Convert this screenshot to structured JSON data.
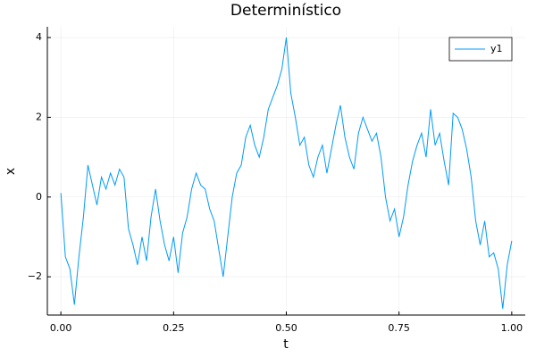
{
  "chart_data": {
    "type": "line",
    "title": "Determinístico",
    "x_label": "t",
    "y_label": "x",
    "x": [
      0.0,
      0.01,
      0.02,
      0.03,
      0.04,
      0.05,
      0.06,
      0.07,
      0.08,
      0.09,
      0.1,
      0.11,
      0.12,
      0.13,
      0.14,
      0.15,
      0.16,
      0.17,
      0.18,
      0.19,
      0.2,
      0.21,
      0.22,
      0.23,
      0.24,
      0.25,
      0.26,
      0.27,
      0.28,
      0.29,
      0.3,
      0.31,
      0.32,
      0.33,
      0.34,
      0.35,
      0.36,
      0.37,
      0.38,
      0.39,
      0.4,
      0.41,
      0.42,
      0.43,
      0.44,
      0.45,
      0.46,
      0.47,
      0.48,
      0.49,
      0.5,
      0.51,
      0.52,
      0.53,
      0.54,
      0.55,
      0.56,
      0.57,
      0.58,
      0.59,
      0.6,
      0.61,
      0.62,
      0.63,
      0.64,
      0.65,
      0.66,
      0.67,
      0.68,
      0.69,
      0.7,
      0.71,
      0.72,
      0.73,
      0.74,
      0.75,
      0.76,
      0.77,
      0.78,
      0.79,
      0.8,
      0.81,
      0.82,
      0.83,
      0.84,
      0.85,
      0.86,
      0.87,
      0.88,
      0.89,
      0.9,
      0.91,
      0.92,
      0.93,
      0.94,
      0.95,
      0.96,
      0.97,
      0.98,
      0.99,
      1.0
    ],
    "series": [
      {
        "name": "y1",
        "color": "#009af9",
        "values": [
          0.1,
          -1.5,
          -1.8,
          -2.7,
          -1.5,
          -0.5,
          0.8,
          0.3,
          -0.2,
          0.5,
          0.2,
          0.6,
          0.3,
          0.7,
          0.5,
          -0.8,
          -1.2,
          -1.7,
          -1.0,
          -1.6,
          -0.5,
          0.2,
          -0.6,
          -1.2,
          -1.6,
          -1.0,
          -1.9,
          -0.9,
          -0.5,
          0.2,
          0.6,
          0.3,
          0.2,
          -0.3,
          -0.6,
          -1.3,
          -2.0,
          -1.0,
          0.0,
          0.6,
          0.8,
          1.5,
          1.8,
          1.3,
          1.0,
          1.5,
          2.2,
          2.5,
          2.8,
          3.2,
          4.0,
          2.6,
          2.0,
          1.3,
          1.5,
          0.8,
          0.5,
          1.0,
          1.3,
          0.6,
          1.2,
          1.8,
          2.3,
          1.5,
          1.0,
          0.7,
          1.6,
          2.0,
          1.7,
          1.4,
          1.6,
          1.0,
          0.0,
          -0.6,
          -0.3,
          -1.0,
          -0.5,
          0.3,
          0.9,
          1.3,
          1.6,
          1.0,
          2.2,
          1.3,
          1.6,
          0.9,
          0.3,
          2.1,
          2.0,
          1.7,
          1.2,
          0.5,
          -0.6,
          -1.2,
          -0.6,
          -1.5,
          -1.4,
          -1.8,
          -2.8,
          -1.7,
          -1.1
        ]
      }
    ],
    "xlim": [
      -0.03,
      1.03
    ],
    "ylim": [
      -2.96,
      4.27
    ],
    "xticks": [
      {
        "value": 0,
        "label": "0.00"
      },
      {
        "value": 0.25,
        "label": "0.25"
      },
      {
        "value": 0.5,
        "label": "0.50"
      },
      {
        "value": 0.75,
        "label": "0.75"
      },
      {
        "value": 1,
        "label": "1.00"
      }
    ],
    "yticks": [
      {
        "value": -2,
        "label": "−2"
      },
      0,
      2,
      4
    ],
    "grid": true,
    "legend": "top-right"
  }
}
